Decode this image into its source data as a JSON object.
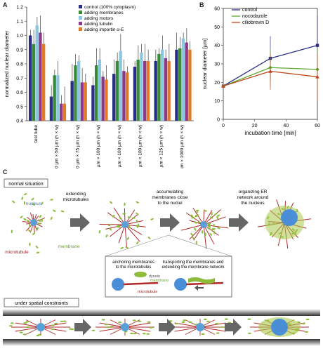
{
  "panel_letters": {
    "a": "A",
    "b": "B",
    "c": "C"
  },
  "chart_data": [
    {
      "type": "bar",
      "ylabel": "normalized nuclear diameter",
      "ylim": [
        0.4,
        1.2
      ],
      "yticks": [
        "0.4",
        "0.5",
        "0.6",
        "0.7",
        "0.8",
        "0.9",
        "1.0",
        "1.1",
        "1.2"
      ],
      "legend_position": "top-right",
      "categories": [
        "test tube",
        "50 µm × 50 µm (h × w)",
        "50 µm × 75 µm (h × w)",
        "50 µm × 100 µm (h × w)",
        "75 µm × 100 µm (h × w)",
        "100 µm × 100 µm (h × w)",
        "100 µm × 125 µm (h × w)",
        "300 µm × 1000 µm (h × w)"
      ],
      "series": [
        {
          "name": "control (100% cytoplasm)",
          "color": "#2a2f86",
          "values": [
            1.0,
            0.57,
            0.68,
            0.65,
            0.73,
            0.78,
            0.82,
            0.9
          ]
        },
        {
          "name": "adding membranes",
          "color": "#3a8a3a",
          "values": [
            0.94,
            0.72,
            0.79,
            0.79,
            0.82,
            0.83,
            0.87,
            0.91
          ]
        },
        {
          "name": "adding motors",
          "color": "#8dc7df",
          "values": [
            1.07,
            0.72,
            0.82,
            0.83,
            0.89,
            0.88,
            0.9,
            0.98
          ]
        },
        {
          "name": "adding tubulin",
          "color": "#8a3a86",
          "values": [
            1.02,
            0.52,
            0.67,
            0.71,
            0.75,
            0.82,
            0.84,
            0.95
          ]
        },
        {
          "name": "adding importin α-E",
          "color": "#e07a2a",
          "values": [
            0.94,
            0.52,
            0.67,
            0.69,
            0.74,
            0.82,
            0.82,
            0.9
          ]
        }
      ]
    },
    {
      "type": "line",
      "xlabel": "incubation time [min]",
      "ylabel": "nuclear diameter [µm]",
      "xlim": [
        0,
        60
      ],
      "ylim": [
        0,
        60
      ],
      "xticks": [
        "0",
        "20",
        "40",
        "60"
      ],
      "yticks": [
        "0",
        "10",
        "20",
        "30",
        "40",
        "50",
        "60"
      ],
      "legend_position": "top-left",
      "series": [
        {
          "name": "control",
          "color": "#2a2f86",
          "marker": "square",
          "x": [
            0,
            30,
            60
          ],
          "y": [
            18,
            33,
            40
          ]
        },
        {
          "name": "nocodazole",
          "color": "#5aa832",
          "marker": "diamond",
          "x": [
            0,
            30,
            60
          ],
          "y": [
            18,
            28,
            27
          ]
        },
        {
          "name": "ciliobrevin D",
          "color": "#c2461e",
          "marker": "triangle",
          "x": [
            0,
            30,
            60
          ],
          "y": [
            18,
            26,
            23
          ]
        }
      ]
    }
  ],
  "diagram": {
    "normal_label": "normal situation",
    "constraint_label": "under spatial constraints",
    "step1": "extending microtubules",
    "step2": "accumulating membranes close to the nuclei",
    "step3": "organizing ER network around the nucleus",
    "nucleus": "nucleus",
    "microtubule": "microtubule",
    "membrane": "membrane",
    "inset_left": "anchoring membranes to the microtubules",
    "inset_right": "transporting the membranes and extending the membrane network",
    "dynein": "dynein",
    "inset_membrane": "membrane",
    "inset_microtubule": "microtubule"
  }
}
